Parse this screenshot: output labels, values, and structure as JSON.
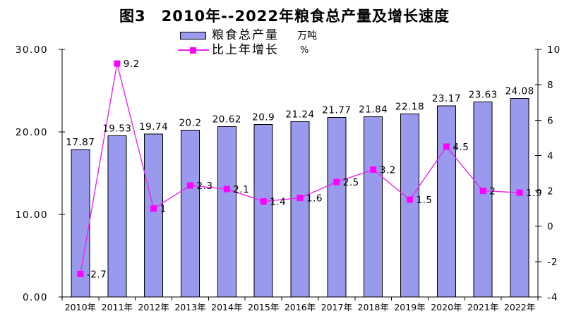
{
  "colors": {
    "background": "#FFFFFF",
    "bar_fill": "#9999EE",
    "bar_border": "#000000",
    "line": "#E728E7",
    "marker": "#FF00FF",
    "axis": "#000000",
    "text": "#000000"
  },
  "chart_data": {
    "type": "combo-bar-line",
    "title": "图3　2010年--2022年粮食总产量及增长速度",
    "categories": [
      "2010年",
      "2011年",
      "2012年",
      "2013年",
      "2014年",
      "2015年",
      "2016年",
      "2017年",
      "2018年",
      "2019年",
      "2020年",
      "2021年",
      "2022年"
    ],
    "series": [
      {
        "name": "粮食总产量",
        "type": "bar",
        "axis": "left",
        "unit": "万吨",
        "values": [
          17.87,
          19.53,
          19.74,
          20.2,
          20.62,
          20.9,
          21.24,
          21.77,
          21.84,
          22.18,
          23.17,
          23.63,
          24.08
        ],
        "labels": [
          "17.87",
          "19.53",
          "19.74",
          "20.2",
          "20.62",
          "20.9",
          "21.24",
          "21.77",
          "21.84",
          "22.18",
          "23.17",
          "23.63",
          "24.08"
        ]
      },
      {
        "name": "比上年增长",
        "type": "line",
        "axis": "right",
        "unit": "%",
        "values": [
          -2.7,
          9.2,
          1,
          2.3,
          2.1,
          1.4,
          1.6,
          2.5,
          3.2,
          1.5,
          4.5,
          2,
          1.9
        ],
        "labels": [
          "-2.7",
          "9.2",
          "1",
          "2.3",
          "2.1",
          "1.4",
          "1.6",
          "2.5",
          "3.2",
          "1.5",
          "4.5",
          "2",
          "1.9"
        ]
      }
    ],
    "left_axis": {
      "min": 0,
      "max": 30,
      "ticks": [
        0,
        10,
        20,
        30
      ],
      "tick_labels": [
        "0.00",
        "10.00",
        "20.00",
        "30.00"
      ]
    },
    "right_axis": {
      "min": -4,
      "max": 10,
      "ticks": [
        -4,
        -2,
        0,
        2,
        4,
        6,
        8,
        10
      ],
      "tick_labels": [
        "-4",
        "-2",
        "0",
        "2",
        "4",
        "6",
        "8",
        "10"
      ]
    },
    "grid": false,
    "data_labels": true,
    "legend_position": "top-center"
  }
}
